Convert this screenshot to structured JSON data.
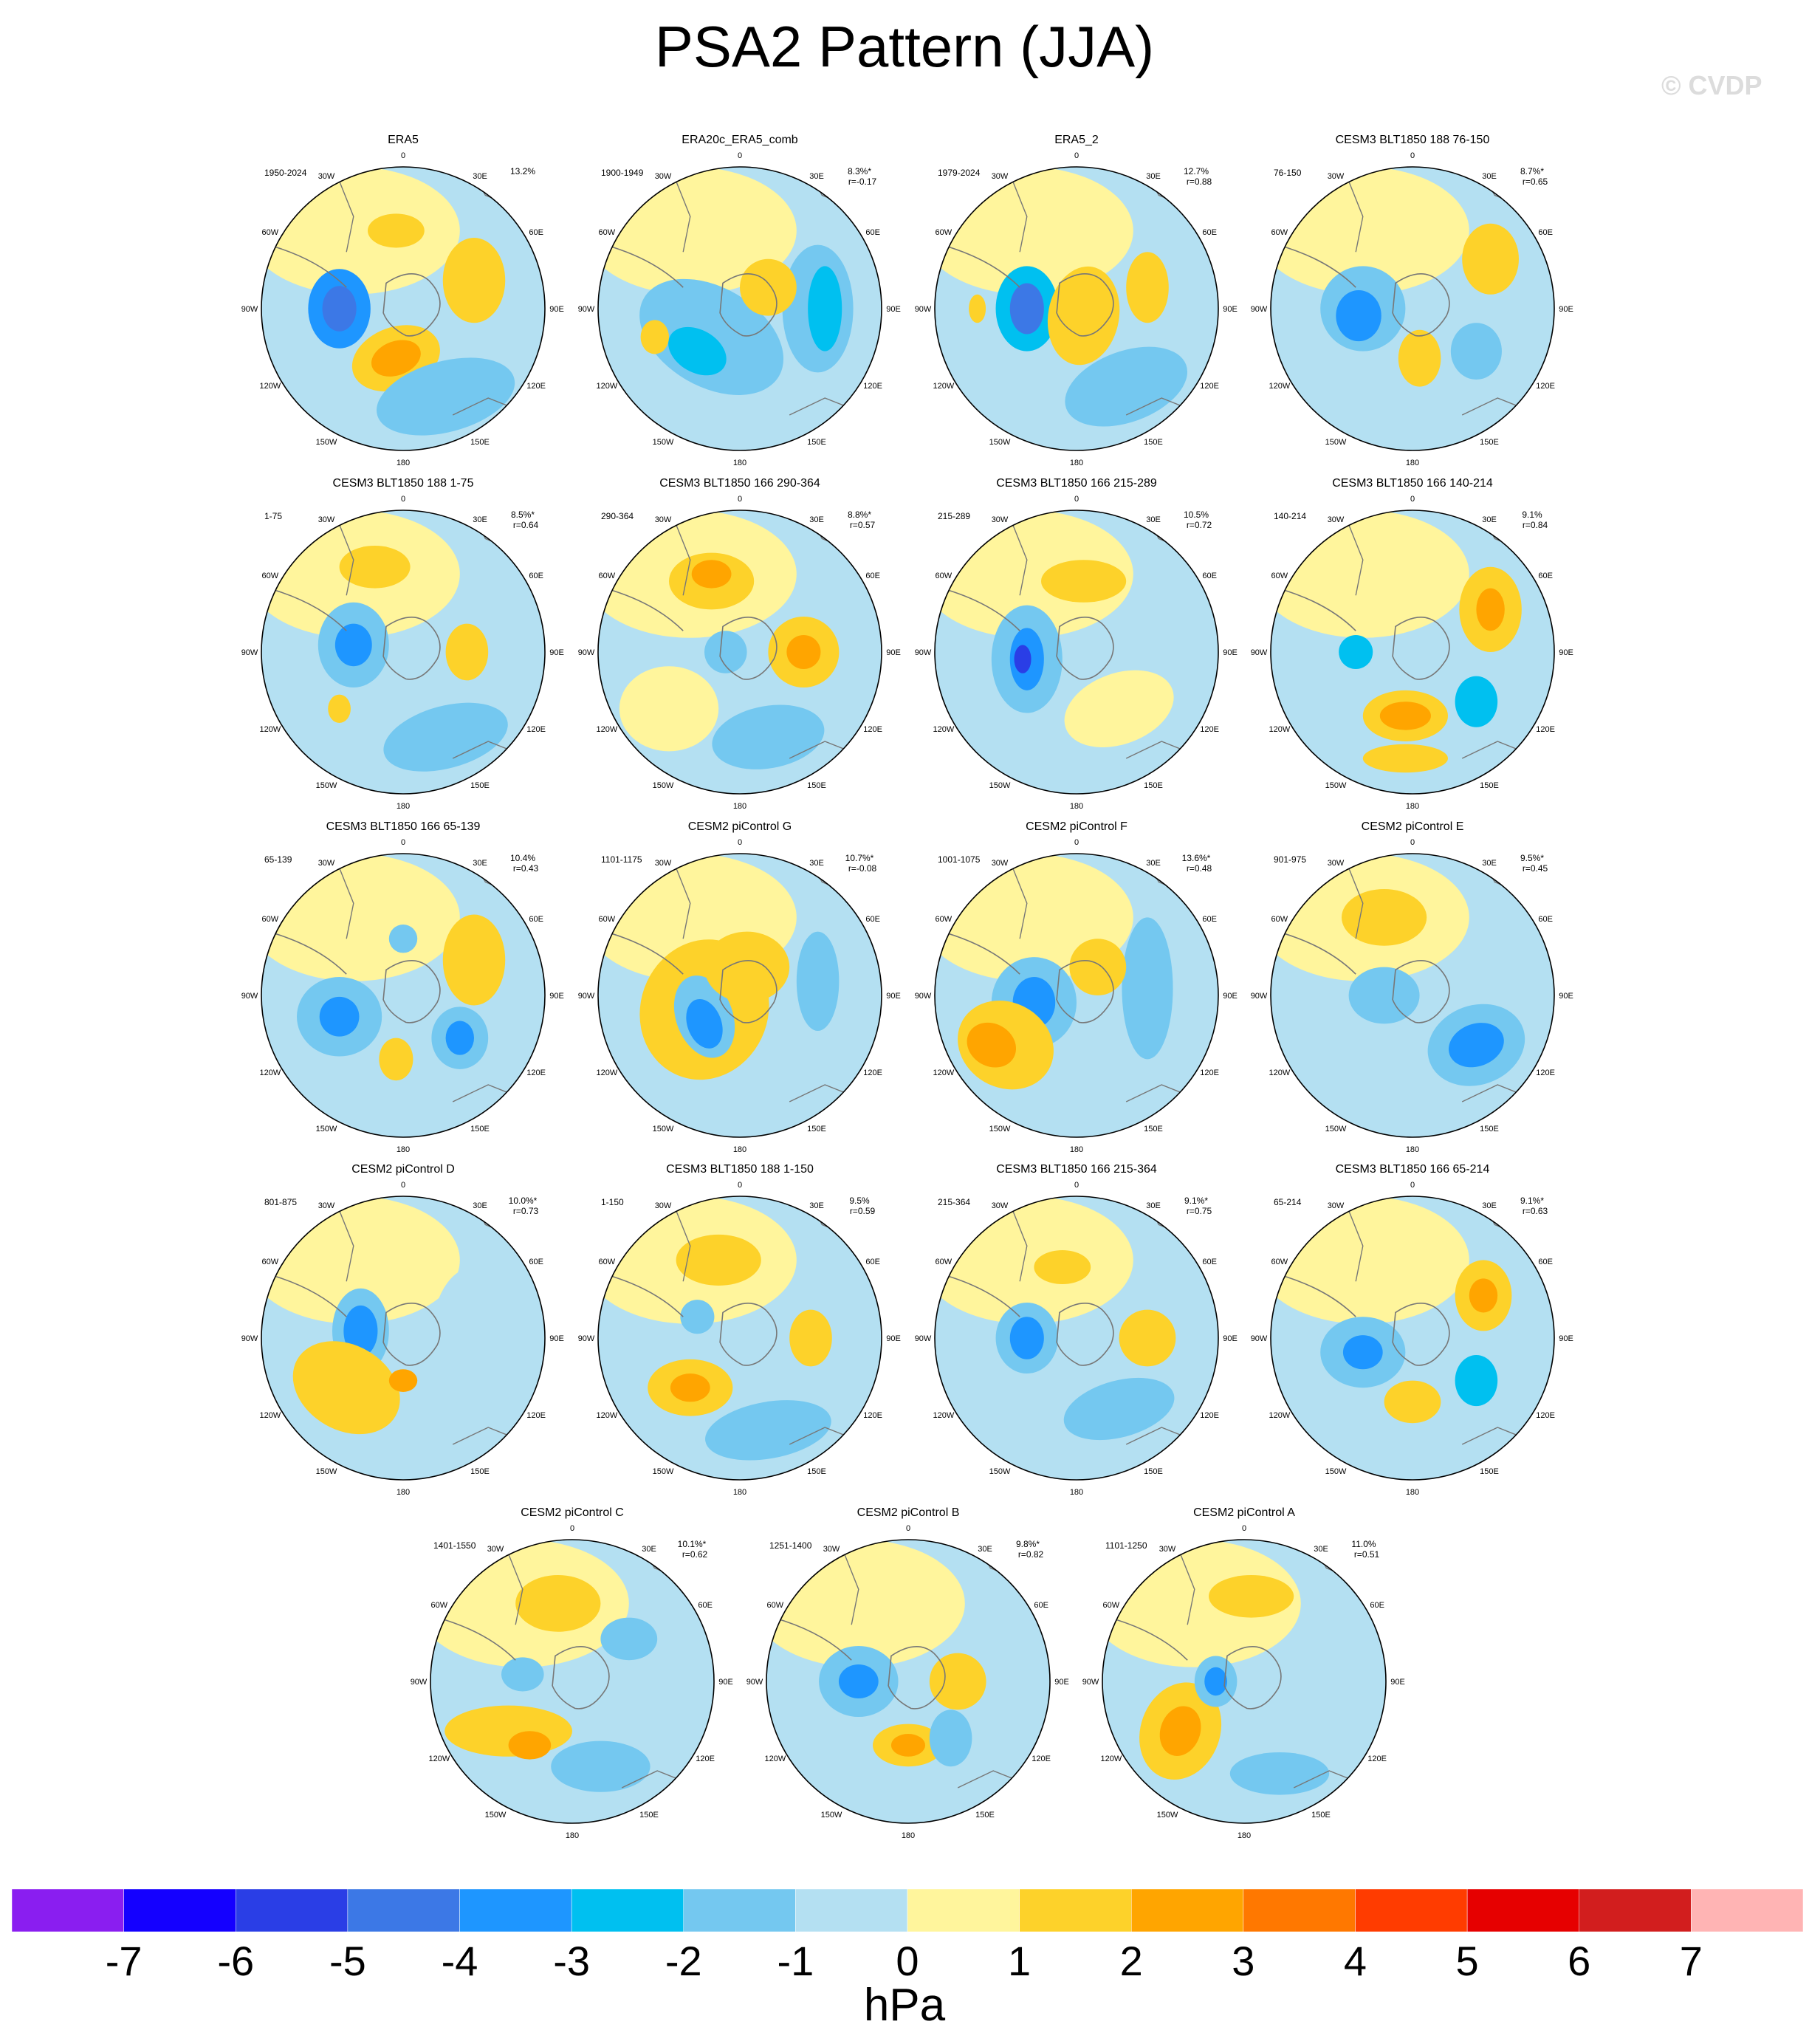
{
  "title": "PSA2 Pattern (JJA)",
  "watermark": "© CVDP",
  "lon_labels": {
    "top": "0",
    "tr30": "30E",
    "tr60": "60E",
    "right": "90E",
    "br120": "120E",
    "br150": "150E",
    "bottom": "180",
    "bl150": "150W",
    "bl120": "120W",
    "left": "90W",
    "tl60": "60W",
    "tl30": "30W"
  },
  "colors": {
    "neg7": "#8a1ef0",
    "neg6": "#1400ff",
    "neg5": "#2a3ee6",
    "neg4": "#3c78e6",
    "neg3": "#1e96ff",
    "neg2": "#00c0f0",
    "neg1": "#74c8f0",
    "neg0": "#b4e0f2",
    "pos0": "#fff59c",
    "pos1": "#fdd22a",
    "pos2": "#ffa500",
    "pos3": "#ff7800",
    "pos4": "#ff3c00",
    "pos5": "#e60000",
    "pos6": "#d21e1e",
    "pos7": "#ffb4b4"
  },
  "chart_data": {
    "type": "heatmap",
    "title": "PSA2 Pattern (JJA)",
    "projection": "south-polar stereographic",
    "units": "hPa",
    "colorbar": {
      "tick_labels": [
        "-7",
        "-6",
        "-5",
        "-4",
        "-3",
        "-2",
        "-1",
        "0",
        "1",
        "2",
        "3",
        "4",
        "5",
        "6",
        "7"
      ],
      "levels": [
        -7,
        -6,
        -5,
        -4,
        -3,
        -2,
        -1,
        0,
        1,
        2,
        3,
        4,
        5,
        6,
        7
      ],
      "colors": [
        "#8a1ef0",
        "#1400ff",
        "#2a3ee6",
        "#3c78e6",
        "#1e96ff",
        "#00c0f0",
        "#74c8f0",
        "#b4e0f2",
        "#fff59c",
        "#fdd22a",
        "#ffa500",
        "#ff7800",
        "#ff3c00",
        "#e60000",
        "#d21e1e",
        "#ffb4b4"
      ],
      "label": "hPa"
    },
    "panels": [
      {
        "name": "ERA5",
        "years": "1950-2024",
        "pct": "13.2%",
        "r": ""
      },
      {
        "name": "ERA20c_ERA5_comb",
        "years": "1900-1949",
        "pct": "8.3%*",
        "r": "r=-0.17"
      },
      {
        "name": "ERA5_2",
        "years": "1979-2024",
        "pct": "12.7%",
        "r": "r=0.88"
      },
      {
        "name": "CESM3 BLT1850 188 76-150",
        "years": "76-150",
        "pct": "8.7%*",
        "r": "r=0.65"
      },
      {
        "name": "CESM3 BLT1850 188 1-75",
        "years": "1-75",
        "pct": "8.5%*",
        "r": "r=0.64"
      },
      {
        "name": "CESM3 BLT1850 166 290-364",
        "years": "290-364",
        "pct": "8.8%*",
        "r": "r=0.57"
      },
      {
        "name": "CESM3 BLT1850 166 215-289",
        "years": "215-289",
        "pct": "10.5%",
        "r": "r=0.72"
      },
      {
        "name": "CESM3 BLT1850 166 140-214",
        "years": "140-214",
        "pct": "9.1%",
        "r": "r=0.84"
      },
      {
        "name": "CESM3 BLT1850 166 65-139",
        "years": "65-139",
        "pct": "10.4%",
        "r": "r=0.43"
      },
      {
        "name": "CESM2 piControl G",
        "years": "1101-1175",
        "pct": "10.7%*",
        "r": "r=-0.08"
      },
      {
        "name": "CESM2 piControl F",
        "years": "1001-1075",
        "pct": "13.6%*",
        "r": "r=0.48"
      },
      {
        "name": "CESM2 piControl E",
        "years": "901-975",
        "pct": "9.5%*",
        "r": "r=0.45"
      },
      {
        "name": "CESM2 piControl D",
        "years": "801-875",
        "pct": "10.0%*",
        "r": "r=0.73"
      },
      {
        "name": "CESM3 BLT1850 188 1-150",
        "years": "1-150",
        "pct": "9.5%",
        "r": "r=0.59"
      },
      {
        "name": "CESM3 BLT1850 166 215-364",
        "years": "215-364",
        "pct": "9.1%*",
        "r": "r=0.75"
      },
      {
        "name": "CESM3 BLT1850 166 65-214",
        "years": "65-214",
        "pct": "9.1%*",
        "r": "r=0.63"
      },
      {
        "name": "CESM2 piControl C",
        "years": "1401-1550",
        "pct": "10.1%*",
        "r": "r=0.62"
      },
      {
        "name": "CESM2 piControl B",
        "years": "1251-1400",
        "pct": "9.8%*",
        "r": "r=0.82"
      },
      {
        "name": "CESM2 piControl A",
        "years": "1101-1250",
        "pct": "11.0%",
        "r": "r=0.51"
      }
    ]
  }
}
